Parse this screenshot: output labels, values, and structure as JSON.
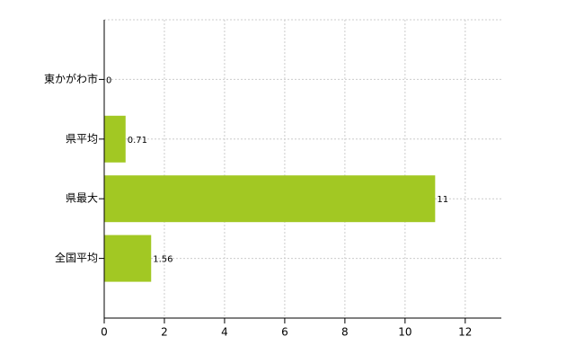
{
  "chart_data": {
    "type": "hbar",
    "categories": [
      "東かがわ市",
      "県平均",
      "県最大",
      "全国平均"
    ],
    "values": [
      0,
      0.71,
      11,
      1.56
    ],
    "color": "#a2c823",
    "xlim": [
      0,
      13.2
    ],
    "xticks": [
      0,
      2,
      4,
      6,
      8,
      10,
      12
    ],
    "grid": true
  }
}
